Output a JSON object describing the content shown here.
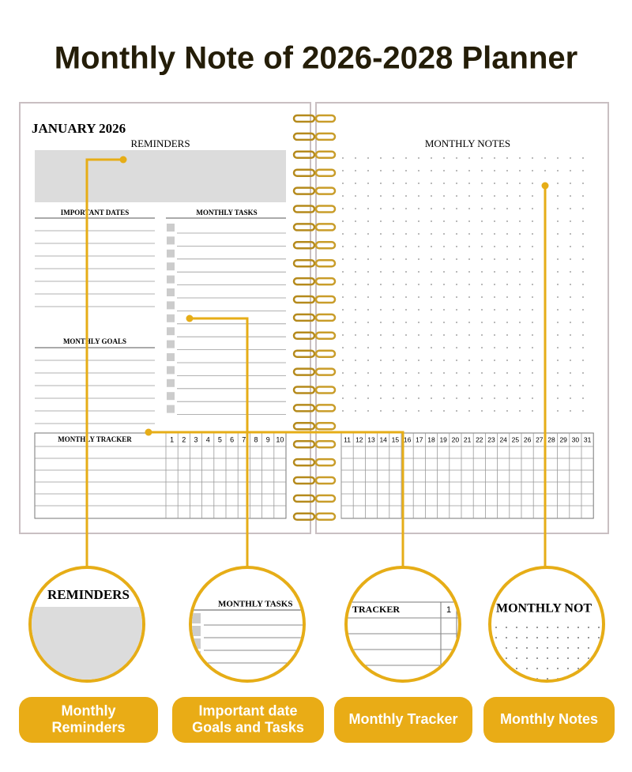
{
  "title": "Monthly Note of 2026-2028 Planner",
  "planner": {
    "left": {
      "month": "JANUARY 2026",
      "reminders": "REMINDERS",
      "important_dates": "IMPORTANT DATES",
      "monthly_tasks": "MONTHLY TASKS",
      "monthly_goals": "MONTHLY GOALS",
      "monthly_tracker": "MONTHLY TRACKER",
      "days": [
        1,
        2,
        3,
        4,
        5,
        6,
        7,
        8,
        9,
        10
      ]
    },
    "right": {
      "monthly_notes": "MONTHLY NOTES",
      "days": [
        11,
        12,
        13,
        14,
        15,
        16,
        17,
        18,
        19,
        20,
        21,
        22,
        23,
        24,
        25,
        26,
        27,
        28,
        29,
        30,
        31
      ]
    }
  },
  "zooms": [
    {
      "text": "REMINDERS"
    },
    {
      "text": "MONTHLY TASKS"
    },
    {
      "text": "TRACKER",
      "day": "1"
    },
    {
      "text": "MONTHLY NOT"
    }
  ],
  "labels": [
    [
      "Monthly",
      "Reminders"
    ],
    [
      "Important date",
      "Goals and Tasks"
    ],
    [
      "Monthly Tracker"
    ],
    [
      "Monthly Notes"
    ]
  ]
}
